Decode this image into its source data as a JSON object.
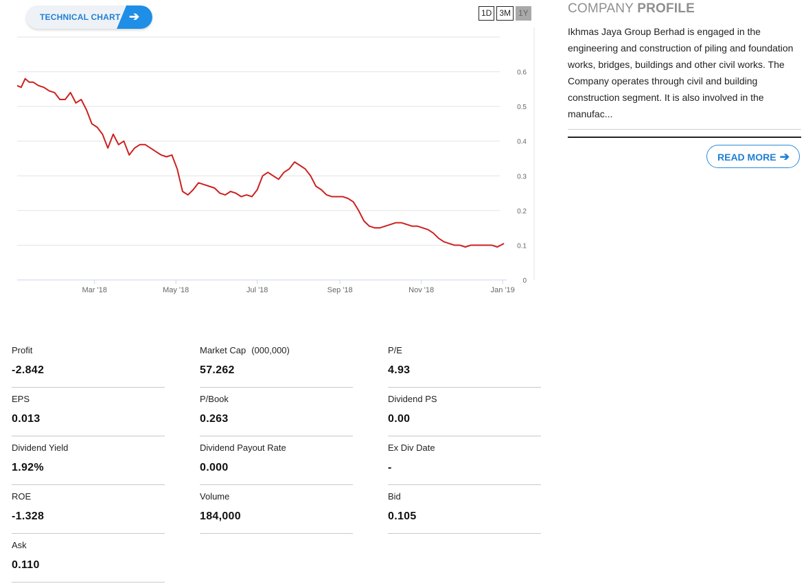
{
  "technical_chart": {
    "label": "TECHNICAL CHART",
    "arrow": "➔"
  },
  "ranges": [
    {
      "label": "1D",
      "active": false
    },
    {
      "label": "3M",
      "active": false
    },
    {
      "label": "1Y",
      "active": true
    }
  ],
  "chart_data": {
    "type": "line",
    "title": "",
    "xlabel": "",
    "ylabel": "",
    "x_ticks": [
      "Mar '18",
      "May '18",
      "Jul '18",
      "Sep '18",
      "Nov '18",
      "Jan '19"
    ],
    "y_ticks": [
      "0",
      "0.1",
      "0.2",
      "0.3",
      "0.4",
      "0.5",
      "0.6"
    ],
    "ylim": [
      0,
      0.7
    ],
    "xlim": [
      "2018-01-02",
      "2019-01-04"
    ],
    "grid": true,
    "line_color": "#cc1f1f",
    "series": [
      {
        "x": [
          "2018-01-02",
          "2018-01-05",
          "2018-01-08",
          "2018-01-11",
          "2018-01-14",
          "2018-01-18",
          "2018-01-22",
          "2018-01-26",
          "2018-01-30",
          "2018-02-03",
          "2018-02-07",
          "2018-02-11",
          "2018-02-15",
          "2018-02-19",
          "2018-02-23",
          "2018-02-27",
          "2018-03-03",
          "2018-03-07",
          "2018-03-11",
          "2018-03-15",
          "2018-03-19",
          "2018-03-23",
          "2018-03-27",
          "2018-03-31",
          "2018-04-04",
          "2018-04-08",
          "2018-04-12",
          "2018-04-16",
          "2018-04-20",
          "2018-04-24",
          "2018-04-28",
          "2018-05-02",
          "2018-05-06",
          "2018-05-10",
          "2018-05-14",
          "2018-05-18",
          "2018-05-22",
          "2018-05-26",
          "2018-05-30",
          "2018-06-03",
          "2018-06-07",
          "2018-06-11",
          "2018-06-15",
          "2018-06-19",
          "2018-06-23",
          "2018-06-27",
          "2018-07-01",
          "2018-07-05",
          "2018-07-09",
          "2018-07-13",
          "2018-07-17",
          "2018-07-21",
          "2018-07-25",
          "2018-07-29",
          "2018-08-02",
          "2018-08-06",
          "2018-08-10",
          "2018-08-14",
          "2018-08-18",
          "2018-08-22",
          "2018-08-26",
          "2018-08-30",
          "2018-09-03",
          "2018-09-07",
          "2018-09-11",
          "2018-09-15",
          "2018-09-19",
          "2018-09-23",
          "2018-09-27",
          "2018-10-01",
          "2018-10-05",
          "2018-10-09",
          "2018-10-13",
          "2018-10-17",
          "2018-10-21",
          "2018-10-25",
          "2018-10-29",
          "2018-11-02",
          "2018-11-06",
          "2018-11-10",
          "2018-11-14",
          "2018-11-18",
          "2018-11-22",
          "2018-11-26",
          "2018-11-30",
          "2018-12-04",
          "2018-12-08",
          "2018-12-12",
          "2018-12-16",
          "2018-12-20",
          "2018-12-24",
          "2018-12-28",
          "2019-01-02"
        ],
        "values": [
          0.56,
          0.555,
          0.58,
          0.57,
          0.57,
          0.56,
          0.555,
          0.545,
          0.54,
          0.52,
          0.52,
          0.54,
          0.51,
          0.52,
          0.49,
          0.45,
          0.44,
          0.42,
          0.38,
          0.42,
          0.39,
          0.4,
          0.36,
          0.38,
          0.39,
          0.39,
          0.38,
          0.37,
          0.36,
          0.355,
          0.36,
          0.32,
          0.255,
          0.245,
          0.26,
          0.28,
          0.275,
          0.27,
          0.265,
          0.25,
          0.245,
          0.255,
          0.25,
          0.24,
          0.245,
          0.24,
          0.26,
          0.3,
          0.31,
          0.3,
          0.29,
          0.31,
          0.32,
          0.34,
          0.33,
          0.32,
          0.3,
          0.27,
          0.26,
          0.245,
          0.24,
          0.24,
          0.24,
          0.235,
          0.225,
          0.2,
          0.17,
          0.155,
          0.15,
          0.15,
          0.155,
          0.16,
          0.165,
          0.165,
          0.16,
          0.155,
          0.155,
          0.15,
          0.145,
          0.135,
          0.12,
          0.11,
          0.105,
          0.1,
          0.1,
          0.095,
          0.1,
          0.1,
          0.1,
          0.1,
          0.1,
          0.095,
          0.105
        ]
      }
    ]
  },
  "profile": {
    "title_light": "COMPANY",
    "title_bold": "PROFILE",
    "description": "Ikhmas Jaya Group Berhad is engaged in the engineering and construction of piling and foundation works, bridges, buildings and other civil works. The Company operates through civil and building construction segment. It is also involved in the manufac...",
    "read_more": "READ MORE",
    "read_more_arrow": "➔"
  },
  "stats": [
    {
      "label": "Profit",
      "sub": "",
      "value": "-2.842"
    },
    {
      "label": "Market Cap",
      "sub": "(000,000)",
      "value": "57.262"
    },
    {
      "label": "P/E",
      "sub": "",
      "value": "4.93"
    },
    {
      "label": "EPS",
      "sub": "",
      "value": "0.013"
    },
    {
      "label": "P/Book",
      "sub": "",
      "value": "0.263"
    },
    {
      "label": "Dividend PS",
      "sub": "",
      "value": "0.00"
    },
    {
      "label": "Dividend Yield",
      "sub": "",
      "value": "1.92%"
    },
    {
      "label": "Dividend Payout Rate",
      "sub": "",
      "value": "0.000"
    },
    {
      "label": "Ex Div Date",
      "sub": "",
      "value": "-"
    },
    {
      "label": "ROE",
      "sub": "",
      "value": "-1.328"
    },
    {
      "label": "Volume",
      "sub": "",
      "value": "184,000"
    },
    {
      "label": "Bid",
      "sub": "",
      "value": "0.105"
    },
    {
      "label": "Ask",
      "sub": "",
      "value": "0.110"
    }
  ]
}
